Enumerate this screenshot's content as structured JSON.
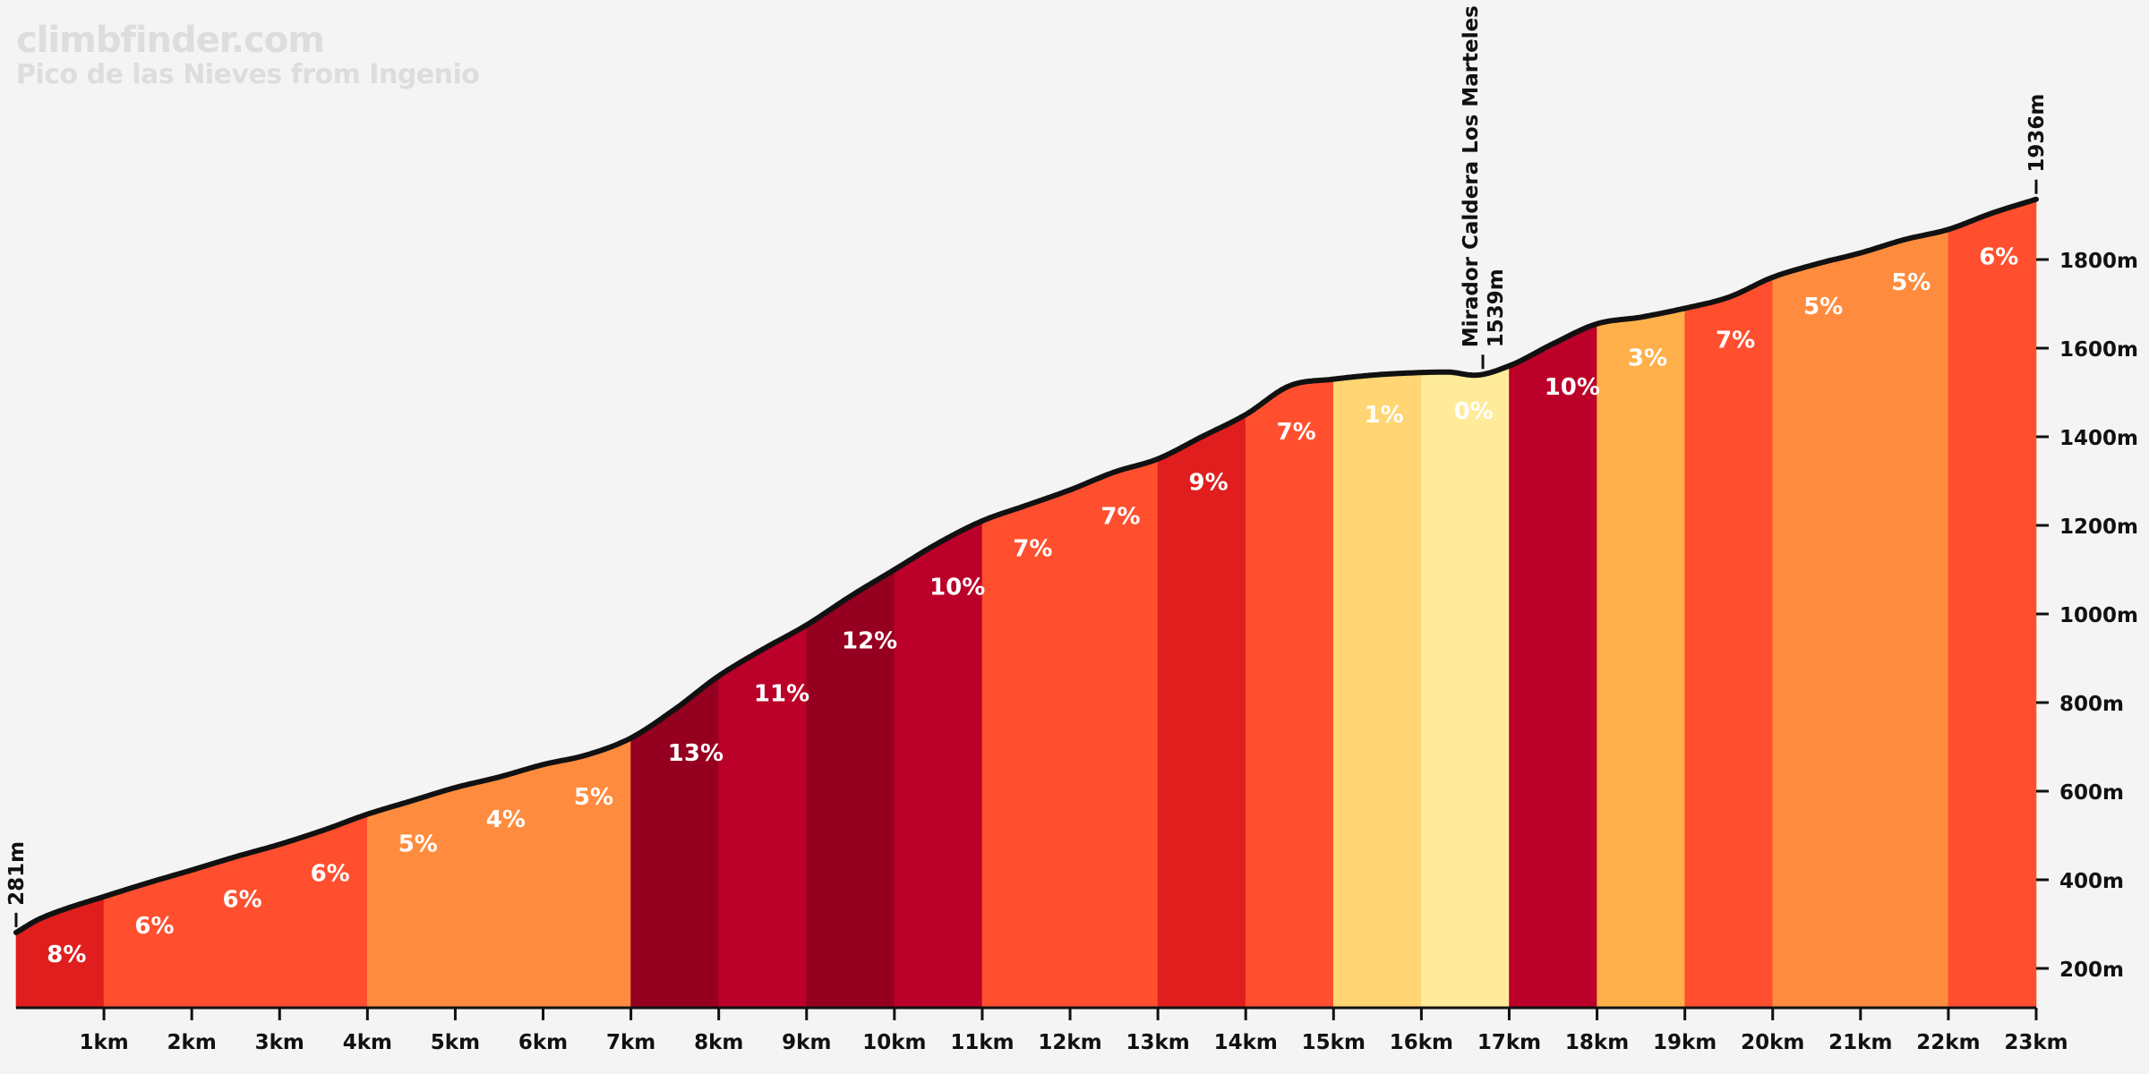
{
  "chart_data": {
    "type": "area",
    "title": "climbfinder.com",
    "subtitle": "Pico de las Nieves from Ingenio",
    "x_unit": "km",
    "y_unit": "m",
    "xlim": [
      0,
      23
    ],
    "ylim": [
      100,
      2000
    ],
    "x_ticks": [
      1,
      2,
      3,
      4,
      5,
      6,
      7,
      8,
      9,
      10,
      11,
      12,
      13,
      14,
      15,
      16,
      17,
      18,
      19,
      20,
      21,
      22,
      23
    ],
    "x_tick_labels": [
      "1km",
      "2km",
      "3km",
      "4km",
      "5km",
      "6km",
      "7km",
      "8km",
      "9km",
      "10km",
      "11km",
      "12km",
      "13km",
      "14km",
      "15km",
      "16km",
      "17km",
      "18km",
      "19km",
      "20km",
      "21km",
      "22km",
      "23km"
    ],
    "y_ticks": [
      200,
      400,
      600,
      800,
      1000,
      1200,
      1400,
      1600,
      1800
    ],
    "y_tick_labels": [
      "200m",
      "400m",
      "600m",
      "800m",
      "1000m",
      "1200m",
      "1400m",
      "1600m",
      "1800m"
    ],
    "profile": [
      [
        0,
        281
      ],
      [
        0.25,
        310
      ],
      [
        0.5,
        330
      ],
      [
        1,
        362
      ],
      [
        1.5,
        393
      ],
      [
        2,
        422
      ],
      [
        2.5,
        452
      ],
      [
        3,
        480
      ],
      [
        3.5,
        512
      ],
      [
        4,
        548
      ],
      [
        4.5,
        578
      ],
      [
        5,
        608
      ],
      [
        5.5,
        632
      ],
      [
        6,
        660
      ],
      [
        6.5,
        682
      ],
      [
        7,
        720
      ],
      [
        7.5,
        785
      ],
      [
        8,
        860
      ],
      [
        8.5,
        920
      ],
      [
        9,
        975
      ],
      [
        9.5,
        1040
      ],
      [
        10,
        1100
      ],
      [
        10.5,
        1160
      ],
      [
        11,
        1210
      ],
      [
        11.5,
        1245
      ],
      [
        12,
        1280
      ],
      [
        12.5,
        1320
      ],
      [
        13,
        1350
      ],
      [
        13.5,
        1400
      ],
      [
        14,
        1450
      ],
      [
        14.5,
        1515
      ],
      [
        15,
        1530
      ],
      [
        15.5,
        1540
      ],
      [
        16,
        1545
      ],
      [
        16.3,
        1546
      ],
      [
        16.6,
        1539
      ],
      [
        17,
        1560
      ],
      [
        17.5,
        1610
      ],
      [
        18,
        1655
      ],
      [
        18.5,
        1670
      ],
      [
        19,
        1690
      ],
      [
        19.5,
        1715
      ],
      [
        20,
        1760
      ],
      [
        20.5,
        1790
      ],
      [
        21,
        1815
      ],
      [
        21.5,
        1845
      ],
      [
        22,
        1868
      ],
      [
        22.5,
        1905
      ],
      [
        23,
        1936
      ]
    ],
    "segments": [
      {
        "from": 0,
        "to": 1,
        "gradient": "8%",
        "color": "#e01e1e"
      },
      {
        "from": 1,
        "to": 4,
        "gradient": "6%",
        "color": "#ff4f2e"
      },
      {
        "from": 4,
        "to": 7,
        "gradient": "5%",
        "color": "#ff8c3e"
      },
      {
        "from": 7,
        "to": 8,
        "gradient": "13%",
        "color": "#960020"
      },
      {
        "from": 8,
        "to": 9,
        "gradient": "11%",
        "color": "#bb0029"
      },
      {
        "from": 9,
        "to": 10,
        "gradient": "12%",
        "color": "#960020"
      },
      {
        "from": 10,
        "to": 11,
        "gradient": "10%",
        "color": "#bb0029"
      },
      {
        "from": 11,
        "to": 13,
        "gradient": "7%",
        "color": "#ff4f2e"
      },
      {
        "from": 13,
        "to": 14,
        "gradient": "9%",
        "color": "#e01e1e"
      },
      {
        "from": 14,
        "to": 15,
        "gradient": "7%",
        "color": "#ff4f2e"
      },
      {
        "from": 15,
        "to": 16,
        "gradient": "1%",
        "color": "#ffd673"
      },
      {
        "from": 16,
        "to": 17,
        "gradient": "0%",
        "color": "#ffeb99"
      },
      {
        "from": 17,
        "to": 18,
        "gradient": "10%",
        "color": "#bb0029"
      },
      {
        "from": 18,
        "to": 19,
        "gradient": "3%",
        "color": "#ffb04a"
      },
      {
        "from": 19,
        "to": 20,
        "gradient": "7%",
        "color": "#ff4f2e"
      },
      {
        "from": 20,
        "to": 22,
        "gradient": "5%",
        "color": "#ff8c3e"
      },
      {
        "from": 22,
        "to": 23,
        "gradient": "6%",
        "color": "#ff4f2e"
      }
    ],
    "gradient_labels": [
      {
        "x": 0.35,
        "text": "8%"
      },
      {
        "x": 1.35,
        "text": "6%"
      },
      {
        "x": 2.35,
        "text": "6%"
      },
      {
        "x": 3.35,
        "text": "6%"
      },
      {
        "x": 4.35,
        "text": "5%"
      },
      {
        "x": 5.35,
        "text": "4%"
      },
      {
        "x": 6.35,
        "text": "5%"
      },
      {
        "x": 7.42,
        "text": "13%"
      },
      {
        "x": 8.4,
        "text": "11%"
      },
      {
        "x": 9.4,
        "text": "12%"
      },
      {
        "x": 10.4,
        "text": "10%"
      },
      {
        "x": 11.35,
        "text": "7%"
      },
      {
        "x": 12.35,
        "text": "7%"
      },
      {
        "x": 13.35,
        "text": "9%"
      },
      {
        "x": 14.35,
        "text": "7%"
      },
      {
        "x": 15.35,
        "text": "1%"
      },
      {
        "x": 16.37,
        "text": "0%"
      },
      {
        "x": 17.4,
        "text": "10%"
      },
      {
        "x": 18.35,
        "text": "3%"
      },
      {
        "x": 19.35,
        "text": "7%"
      },
      {
        "x": 20.35,
        "text": "5%"
      },
      {
        "x": 21.35,
        "text": "5%"
      },
      {
        "x": 22.35,
        "text": "6%"
      }
    ],
    "annotations": [
      {
        "x": 0,
        "elevation": 281,
        "label": "281m"
      },
      {
        "x": 16.7,
        "elevation": 1539,
        "name": "Mirador Caldera Los Marteles",
        "label": "1539m"
      },
      {
        "x": 23,
        "elevation": 1936,
        "label": "1936m"
      }
    ],
    "colors": {
      "background": "#f4f4f4",
      "line": "#111111",
      "label_text": "#ffffff",
      "axis_text": "#111111",
      "brand_text": "#dddddd"
    }
  }
}
